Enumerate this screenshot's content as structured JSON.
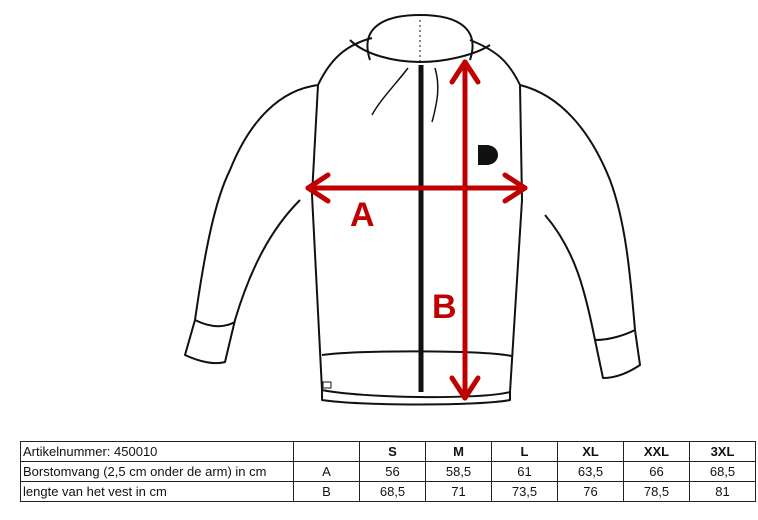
{
  "diagram": {
    "measure_a_label": "A",
    "measure_b_label": "B",
    "arrow_color": "#c00000",
    "logo_mark": "D"
  },
  "size_table": {
    "article_label": "Artikelnummer: 450010",
    "sizes": [
      "S",
      "M",
      "L",
      "XL",
      "XXL",
      "3XL"
    ],
    "rows": [
      {
        "label": "Borstomvang (2,5 cm onder de arm) in cm",
        "code": "A",
        "values": [
          "56",
          "58,5",
          "61",
          "63,5",
          "66",
          "68,5"
        ]
      },
      {
        "label": "lengte van het vest in cm",
        "code": "B",
        "values": [
          "68,5",
          "71",
          "73,5",
          "76",
          "78,5",
          "81"
        ]
      }
    ]
  }
}
